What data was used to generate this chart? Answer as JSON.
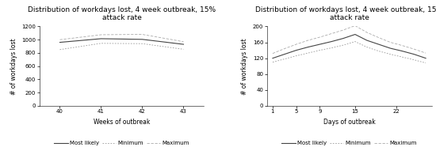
{
  "title": "Distribution of workdays lost, 4 week outbreak, 15%\nattack rate",
  "left": {
    "xlabel": "Weeks of outbreak",
    "ylabel": "# of workdays lost",
    "x": [
      40,
      41,
      42,
      43
    ],
    "most_likely": [
      960,
      1015,
      1005,
      930
    ],
    "minimum": [
      850,
      945,
      940,
      855
    ],
    "maximum": [
      1000,
      1075,
      1080,
      970
    ],
    "ylim": [
      0,
      1200
    ],
    "yticks": [
      0,
      200,
      400,
      600,
      800,
      1000,
      1200
    ],
    "xticks": [
      40,
      41,
      42,
      43
    ],
    "xlim": [
      39.5,
      43.5
    ]
  },
  "right": {
    "xlabel": "Days of outbreak",
    "ylabel": "# of workdays lost",
    "x": [
      1,
      3,
      5,
      7,
      9,
      11,
      13,
      15,
      17,
      19,
      21,
      23,
      25,
      27
    ],
    "most_likely": [
      120,
      130,
      140,
      148,
      155,
      162,
      170,
      180,
      165,
      155,
      145,
      138,
      130,
      120
    ],
    "minimum": [
      110,
      118,
      126,
      133,
      140,
      146,
      153,
      162,
      148,
      138,
      130,
      123,
      116,
      108
    ],
    "maximum": [
      132,
      144,
      155,
      165,
      173,
      182,
      191,
      202,
      185,
      172,
      160,
      152,
      143,
      133
    ],
    "ylim": [
      0,
      200
    ],
    "yticks": [
      0,
      40,
      80,
      120,
      160,
      200
    ],
    "xticks": [
      1,
      5,
      9,
      15,
      22
    ],
    "xlim": [
      0,
      28
    ]
  },
  "legend_labels": [
    "Most likely",
    "Minimum",
    "Maximum"
  ],
  "line_styles_left": [
    "-",
    ":",
    "--"
  ],
  "line_styles_right": [
    "-",
    ":",
    "--"
  ],
  "line_colors": [
    "#444444",
    "#999999",
    "#aaaaaa"
  ],
  "bg_color": "#ffffff",
  "title_fontsize": 6.5,
  "axis_label_fontsize": 5.5,
  "tick_fontsize": 5,
  "legend_fontsize": 5
}
